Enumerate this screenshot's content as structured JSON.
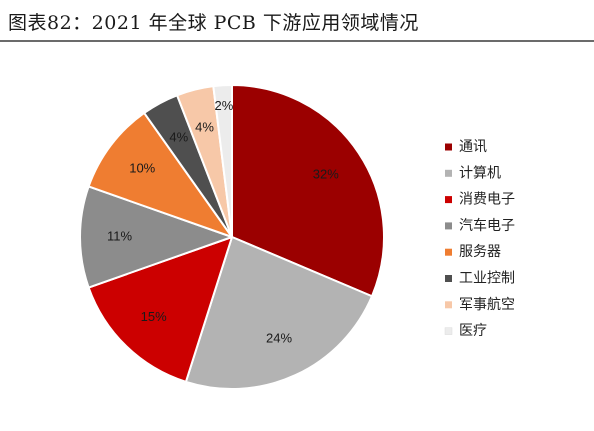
{
  "title": "图表82：2021 年全球 PCB 下游应用领域情况",
  "chart_data": {
    "type": "pie",
    "title": "",
    "start_angle_deg": 0,
    "direction": "clockwise",
    "legend_position": "right",
    "slices": [
      {
        "name": "通讯",
        "value": 32,
        "label": "32%",
        "color": "#9b0000",
        "label_color": "#1a1a1a"
      },
      {
        "name": "计算机",
        "value": 24,
        "label": "24%",
        "color": "#b3b3b3",
        "label_color": "#1a1a1a"
      },
      {
        "name": "消费电子",
        "value": 15,
        "label": "15%",
        "color": "#cc0000",
        "label_color": "#1a1a1a"
      },
      {
        "name": "汽车电子",
        "value": 11,
        "label": "11%",
        "color": "#8c8c8c",
        "label_color": "#1a1a1a"
      },
      {
        "name": "服务器",
        "value": 10,
        "label": "10%",
        "color": "#ef7d31",
        "label_color": "#1a1a1a"
      },
      {
        "name": "工业控制",
        "value": 4,
        "label": "4%",
        "color": "#4f4f4f",
        "label_color": "#1a1a1a"
      },
      {
        "name": "军事航空",
        "value": 4,
        "label": "4%",
        "color": "#f7c8a8",
        "label_color": "#1a1a1a"
      },
      {
        "name": "医疗",
        "value": 2,
        "label": "2%",
        "color": "#ececec",
        "label_color": "#1a1a1a"
      }
    ]
  }
}
